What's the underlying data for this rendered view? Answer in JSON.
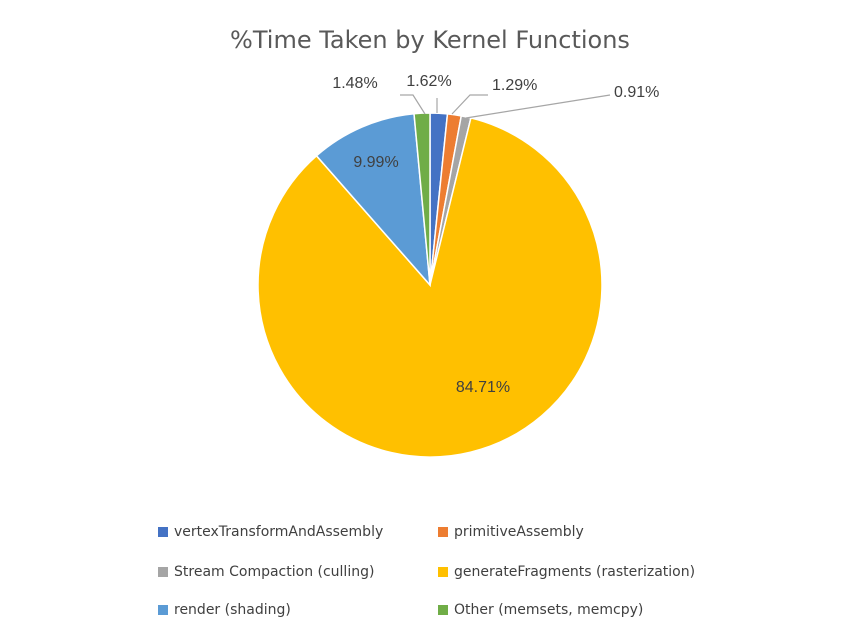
{
  "chart_data": {
    "type": "pie",
    "title": "%Time Taken by Kernel Functions",
    "slices": [
      {
        "name": "vertexTransformAndAssembly",
        "value": 1.62,
        "label": "1.62%",
        "color": "#4472C4"
      },
      {
        "name": "primitiveAssembly",
        "value": 1.29,
        "label": "1.29%",
        "color": "#ED7D31"
      },
      {
        "name": "Stream Compaction (culling)",
        "value": 0.91,
        "label": "0.91%",
        "color": "#A5A5A5"
      },
      {
        "name": "generateFragments (rasterization)",
        "value": 84.71,
        "label": "84.71%",
        "color": "#FFC000"
      },
      {
        "name": "render (shading)",
        "value": 9.99,
        "label": "9.99%",
        "color": "#5B9BD5"
      },
      {
        "name": "Other (memsets, memcpy)",
        "value": 1.48,
        "label": "1.48%",
        "color": "#70AD47"
      }
    ],
    "legend_position": "bottom"
  }
}
